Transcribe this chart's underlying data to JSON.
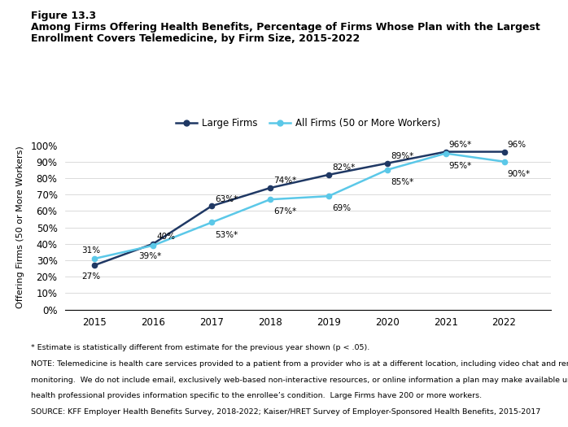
{
  "years": [
    2015,
    2016,
    2017,
    2018,
    2019,
    2020,
    2021,
    2022
  ],
  "large_firms": [
    27,
    40,
    63,
    74,
    82,
    89,
    96,
    96
  ],
  "all_firms": [
    31,
    39,
    53,
    67,
    69,
    85,
    95,
    90
  ],
  "large_firms_labels": [
    "27%",
    "40%",
    "63%*",
    "74%*",
    "82%*",
    "89%*",
    "96%*",
    "96%"
  ],
  "all_firms_labels": [
    "31%",
    "39%*",
    "53%*",
    "67%*",
    "69%",
    "85%*",
    "95%*",
    "90%*"
  ],
  "large_firms_color": "#1f3864",
  "all_firms_color": "#5bc8e8",
  "title_line1": "Figure 13.3",
  "title_line2": "Among Firms Offering Health Benefits, Percentage of Firms Whose Plan with the Largest",
  "title_line3": "Enrollment Covers Telemedicine, by Firm Size, 2015-2022",
  "ylabel": "Offering Firms (50 or More Workers)",
  "legend_large": "Large Firms",
  "legend_all": "All Firms (50 or More Workers)",
  "footnote1": "* Estimate is statistically different from estimate for the previous year shown (p < .05).",
  "footnote2": "NOTE: Telemedicine is health care services provided to a patient from a provider who is at a different location, including video chat and remote",
  "footnote3": "monitoring.  We do not include email, exclusively web-based non-interactive resources, or online information a plan may make available unless a",
  "footnote4": "health professional provides information specific to the enrollee’s condition.  Large Firms have 200 or more workers.",
  "footnote5": "SOURCE: KFF Employer Health Benefits Survey, 2018-2022; Kaiser/HRET Survey of Employer-Sponsored Health Benefits, 2015-2017",
  "ylim": [
    0,
    100
  ],
  "yticks": [
    0,
    10,
    20,
    30,
    40,
    50,
    60,
    70,
    80,
    90,
    100
  ],
  "bg_color": "#ffffff"
}
